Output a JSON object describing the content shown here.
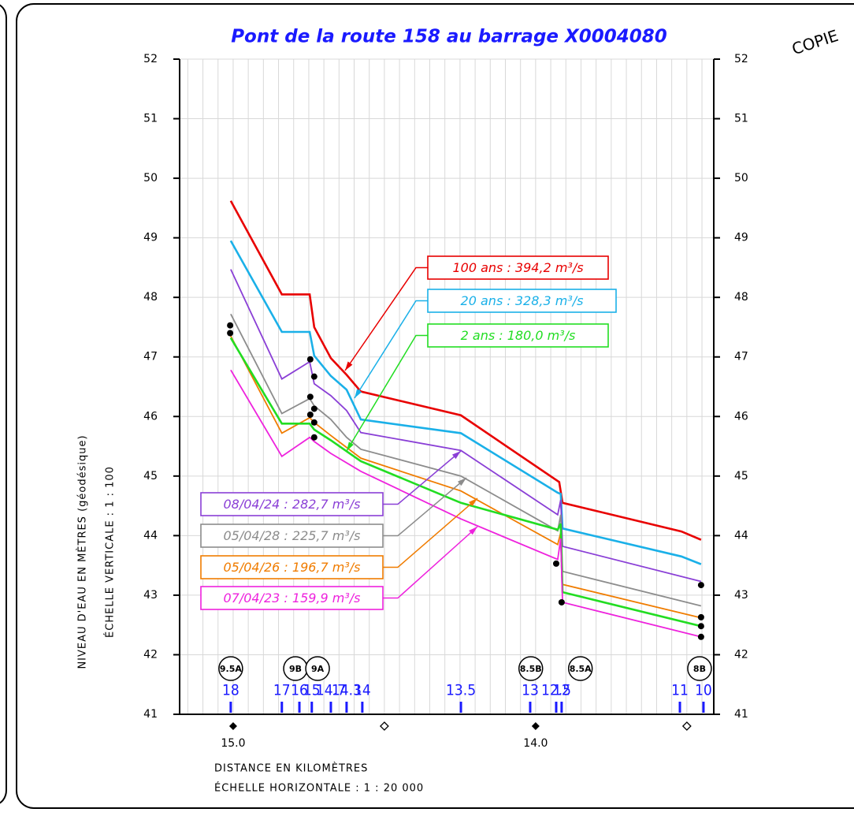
{
  "chart_data": {
    "type": "line",
    "title": "Pont de la route 158 au barrage X0004080",
    "stamp": "COPIE",
    "y_label": "NIVEAU  D'EAU  EN  MÈTRES  (géodésique)",
    "y_scale_label": "ÉCHELLE VERTICALE : 1 : 100",
    "x_label": "DISTANCE  EN  KILOMÈTRES",
    "x_scale_label": "ÉCHELLE HORIZONTALE : 1 : 20 000",
    "xlim": [
      15.177,
      13.411
    ],
    "ylim": [
      41,
      52
    ],
    "yticks": [
      41,
      42,
      43,
      44,
      45,
      46,
      47,
      48,
      49,
      50,
      51,
      52
    ],
    "xticks": [
      {
        "value": 15,
        "label": "15.0"
      },
      {
        "value": 14,
        "label": "14.0"
      }
    ],
    "minor_xticks": [
      14.5,
      13.5
    ],
    "grid": true,
    "xgrid_step": 0.05,
    "series": [
      {
        "name": "100 ans : 394,2 m³/s",
        "color": "#e80000",
        "x": [
          15.008,
          14.839,
          14.747,
          14.732,
          14.677,
          14.625,
          14.578,
          14.247,
          13.922,
          13.911,
          13.518,
          13.453
        ],
        "values": [
          49.62,
          48.05,
          48.05,
          47.5,
          46.98,
          46.7,
          46.42,
          46.02,
          44.9,
          44.55,
          44.07,
          43.93
        ]
      },
      {
        "name": "20 ans : 328,3 m³/s",
        "color": "#1ab0e8",
        "x": [
          15.008,
          14.839,
          14.747,
          14.732,
          14.677,
          14.625,
          14.578,
          14.247,
          13.927,
          13.917,
          13.911,
          13.518,
          13.453
        ],
        "values": [
          48.95,
          47.42,
          47.42,
          47.02,
          46.68,
          46.45,
          45.95,
          45.72,
          44.72,
          44.7,
          44.12,
          43.65,
          43.52
        ]
      },
      {
        "name": "08/04/24 : 282,7 m³/s",
        "color": "#8a3fd6",
        "x": [
          15.008,
          14.839,
          14.747,
          14.732,
          14.677,
          14.625,
          14.578,
          14.247,
          13.927,
          13.917,
          13.911,
          13.453
        ],
        "values": [
          48.47,
          46.63,
          46.92,
          46.55,
          46.35,
          46.1,
          45.73,
          45.43,
          44.35,
          44.6,
          43.82,
          43.23
        ]
      },
      {
        "name": "05/04/28 : 225,7 m³/s",
        "color": "#8c8c8c",
        "x": [
          15.008,
          14.839,
          14.747,
          14.732,
          14.677,
          14.625,
          14.578,
          14.247,
          13.927,
          13.917,
          13.911,
          13.453
        ],
        "values": [
          47.72,
          46.05,
          46.3,
          46.18,
          45.95,
          45.65,
          45.45,
          45.0,
          44.08,
          44.35,
          43.4,
          42.82
        ]
      },
      {
        "name": "05/04/26 : 196,7 m³/s",
        "color": "#f07c00",
        "x": [
          15.008,
          14.839,
          14.747,
          14.732,
          14.677,
          14.578,
          14.247,
          13.927,
          13.917,
          13.911,
          13.453
        ],
        "values": [
          47.35,
          45.72,
          45.98,
          45.9,
          45.68,
          45.3,
          44.75,
          43.85,
          44.05,
          43.18,
          42.62
        ]
      },
      {
        "name": "2 ans : 180,0 m³/s",
        "color": "#22dd22",
        "x": [
          15.008,
          14.839,
          14.747,
          14.732,
          14.677,
          14.578,
          14.247,
          13.927,
          13.917,
          13.911,
          13.453
        ],
        "values": [
          47.32,
          45.88,
          45.88,
          45.78,
          45.6,
          45.25,
          44.55,
          44.1,
          44.2,
          43.05,
          42.48
        ]
      },
      {
        "name": "07/04/23 : 159,9 m³/s",
        "color": "#ee22dd",
        "x": [
          15.008,
          14.839,
          14.747,
          14.732,
          14.677,
          14.578,
          14.247,
          13.927,
          13.917,
          13.911,
          13.453
        ],
        "values": [
          46.78,
          45.33,
          45.65,
          45.58,
          45.38,
          45.08,
          44.28,
          43.6,
          43.95,
          42.88,
          42.3
        ]
      }
    ],
    "observed": {
      "x": [
        15.01,
        15.01,
        14.745,
        14.732,
        14.745,
        14.732,
        14.745,
        14.732,
        14.732,
        13.932,
        13.914,
        13.453,
        13.453,
        13.453,
        13.453
      ],
      "values": [
        47.53,
        47.4,
        46.96,
        46.67,
        46.33,
        46.13,
        46.03,
        45.9,
        45.65,
        43.53,
        42.88,
        43.17,
        42.63,
        42.48,
        42.3
      ]
    },
    "sections": [
      {
        "label": "18",
        "x": 15.008
      },
      {
        "label": "17",
        "x": 14.839
      },
      {
        "label": "16",
        "x": 14.781
      },
      {
        "label": "15",
        "x": 14.74
      },
      {
        "label": "14.7",
        "x": 14.677
      },
      {
        "label": "14.3",
        "x": 14.625
      },
      {
        "label": "14",
        "x": 14.573
      },
      {
        "label": "13.5",
        "x": 14.247
      },
      {
        "label": "13",
        "x": 14.018
      },
      {
        "label": "12.5",
        "x": 13.932
      },
      {
        "label": "12",
        "x": 13.914
      },
      {
        "label": "11",
        "x": 13.523
      },
      {
        "label": "10",
        "x": 13.445
      }
    ],
    "bridges": [
      {
        "label": "9.5A",
        "x": 15.008
      },
      {
        "label": "9B",
        "x": 14.794
      },
      {
        "label": "9A",
        "x": 14.721
      },
      {
        "label": "8.5B",
        "x": 14.016
      },
      {
        "label": "8.5A",
        "x": 13.852
      },
      {
        "label": "8B",
        "x": 13.458
      }
    ]
  }
}
